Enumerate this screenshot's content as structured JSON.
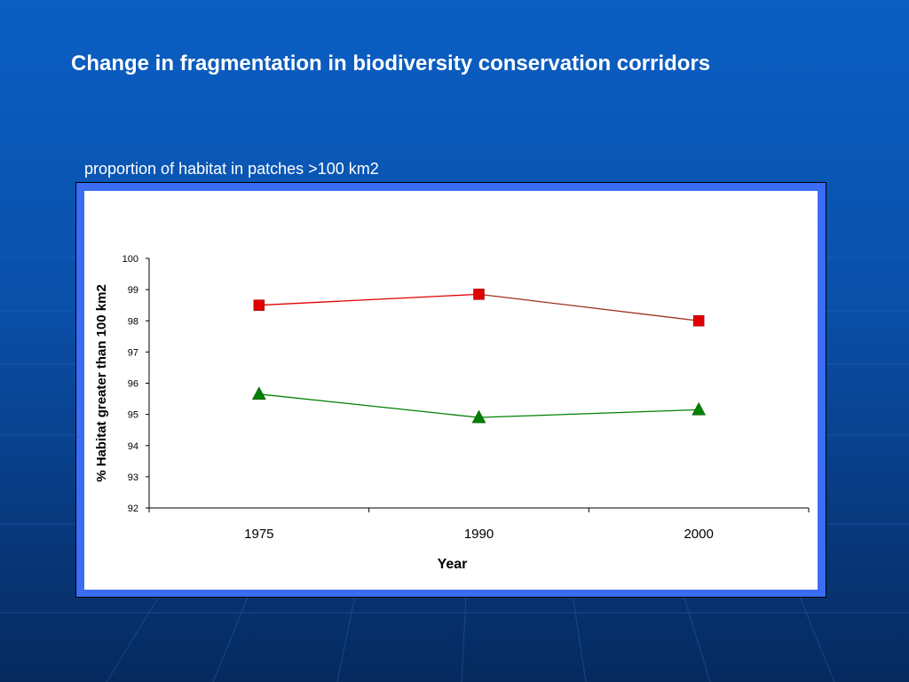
{
  "slide": {
    "title": "Change in fragmentation in biodiversity conservation corridors",
    "subtitle": "proportion of habitat in patches >100 km2"
  },
  "chart_data": {
    "type": "line",
    "title": "",
    "xlabel": "Year",
    "ylabel": "% Habitat greater than 100 km2",
    "categories": [
      "1975",
      "1990",
      "2000"
    ],
    "ylim": [
      92,
      100
    ],
    "yticks": [
      92,
      93,
      94,
      95,
      96,
      97,
      98,
      99,
      100
    ],
    "grid": false,
    "legend": "none",
    "series": [
      {
        "values": [
          98.5,
          98.85,
          98.0
        ],
        "color": "#e00000",
        "marker": "square"
      },
      {
        "values": [
          95.65,
          94.9,
          95.15
        ],
        "color": "#008000",
        "marker": "triangle"
      }
    ]
  }
}
